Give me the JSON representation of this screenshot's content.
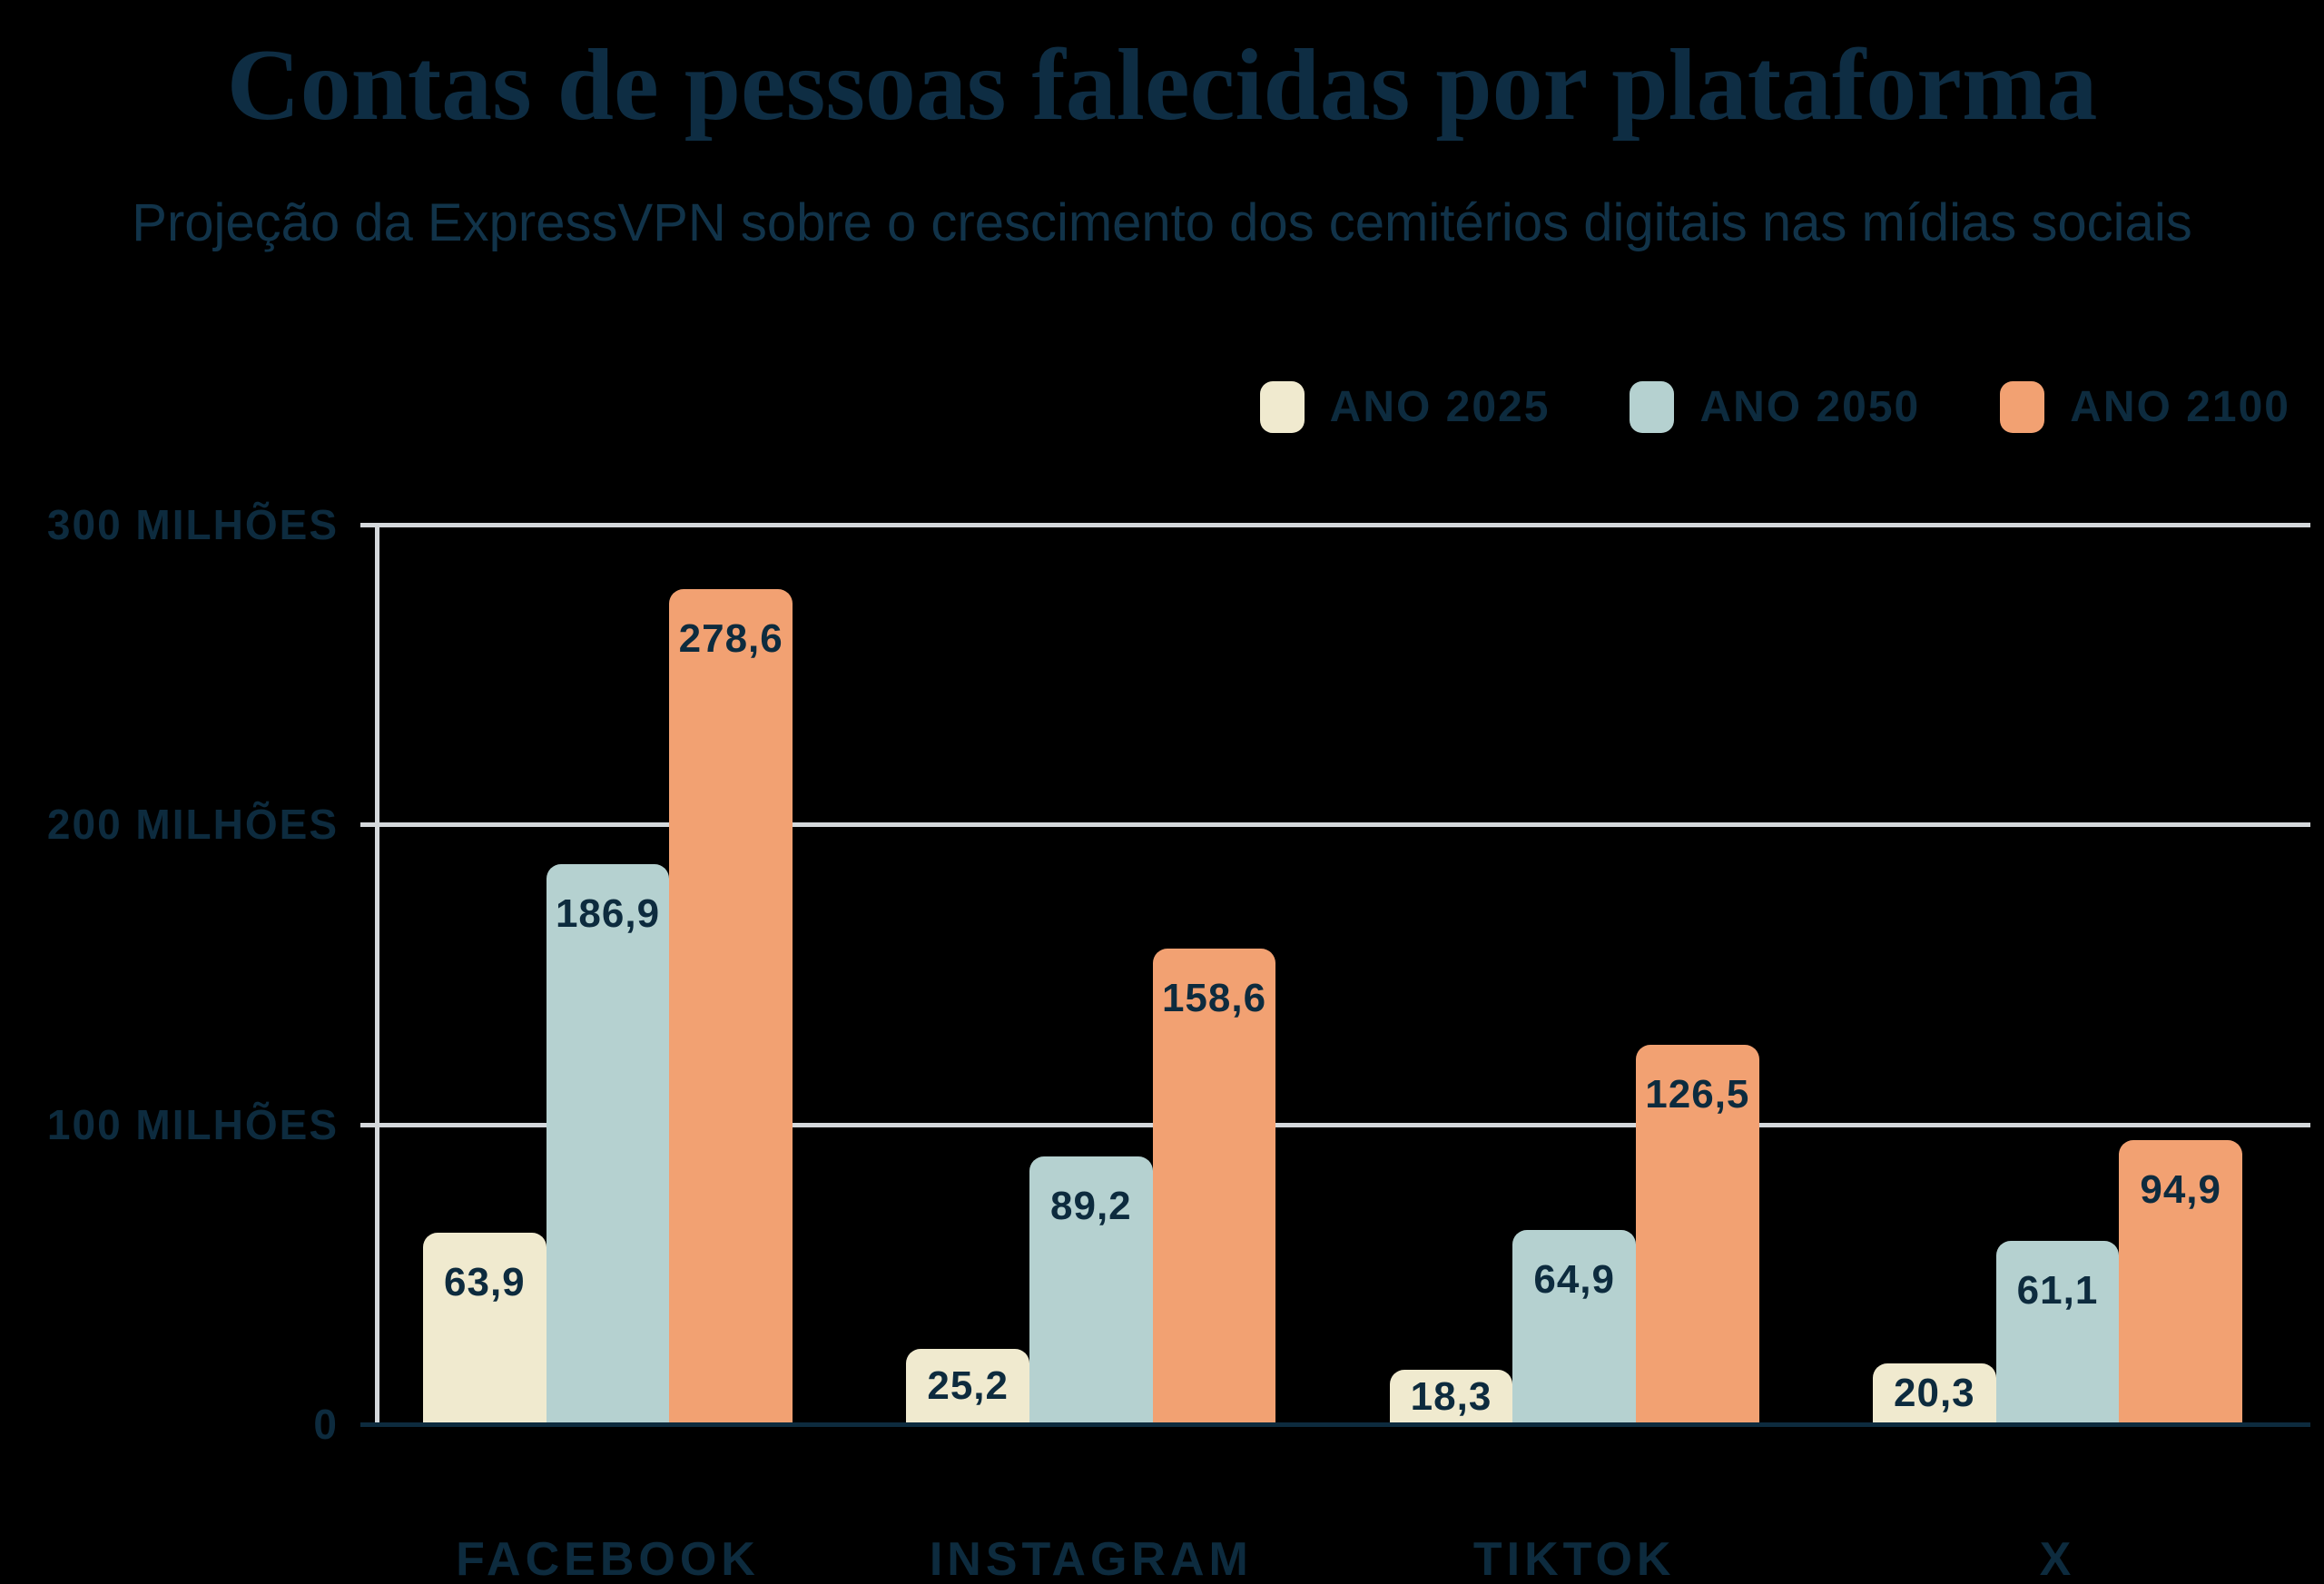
{
  "title": "Contas de pessoas falecidas por plataforma",
  "subtitle": "Projeção da ExpressVPN sobre o crescimento dos cemitérios digitais nas mídias sociais",
  "colors": {
    "background": "#000000",
    "title_text": "#0E2D43",
    "subtitle_text": "#113349",
    "label_text": "#0D2B3E",
    "gridline": "#D4D8DB",
    "baseline": "#0D2B3E"
  },
  "chart_data": {
    "type": "bar",
    "categories": [
      "FACEBOOK",
      "INSTAGRAM",
      "TIKTOK",
      "X"
    ],
    "series": [
      {
        "name": "ANO 2025",
        "color": "#F0EACF",
        "values": [
          63.9,
          25.2,
          18.3,
          20.3
        ],
        "labels": [
          "63,9",
          "25,2",
          "18,3",
          "20,3"
        ]
      },
      {
        "name": "ANO 2050",
        "color": "#B5D1D0",
        "values": [
          186.9,
          89.2,
          64.9,
          61.1
        ],
        "labels": [
          "186,9",
          "89,2",
          "64,9",
          "61,1"
        ]
      },
      {
        "name": "ANO 2100",
        "color": "#F2A172",
        "values": [
          278.6,
          158.6,
          126.5,
          94.9
        ],
        "labels": [
          "278,6",
          "158,6",
          "126,5",
          "94,9"
        ]
      }
    ],
    "y_axis": {
      "max": 300,
      "ticks": [
        {
          "label": "300 MILHÕES",
          "value": 300
        },
        {
          "label": "200 MILHÕES",
          "value": 200
        },
        {
          "label": "100 MILHÕES",
          "value": 100
        },
        {
          "label": "0",
          "value": 0
        }
      ]
    },
    "ylim": [
      0,
      300
    ],
    "grid": true,
    "legend_position": "top-right"
  }
}
